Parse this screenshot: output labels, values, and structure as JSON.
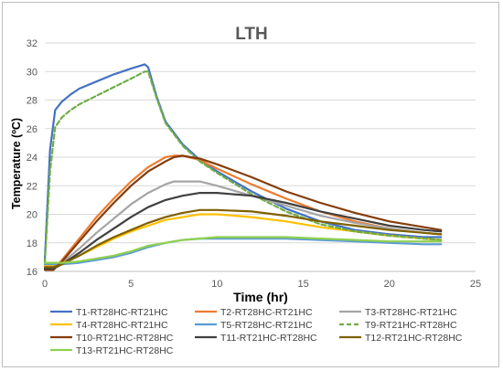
{
  "chart_data": {
    "type": "line",
    "title": "LTH",
    "xlabel": "Time (hr)",
    "ylabel": "Temperature (ºC)",
    "xlim": [
      0,
      25
    ],
    "ylim": [
      16,
      32
    ],
    "x_ticks": [
      "0",
      "5",
      "10",
      "15",
      "20",
      "25"
    ],
    "y_ticks": [
      "16",
      "18",
      "20",
      "22",
      "24",
      "26",
      "28",
      "30",
      "32"
    ],
    "grid": "horizontal",
    "legend_position": "bottom",
    "series": [
      {
        "name": "T1-RT28HC-RT21HC",
        "color": "#4472c4",
        "dash": "solid",
        "x": [
          0,
          0.3,
          0.6,
          1,
          1.5,
          2,
          3,
          4,
          5,
          5.8,
          6,
          6.5,
          7,
          8,
          9,
          10,
          12,
          14,
          16,
          18,
          20,
          22,
          23
        ],
        "y": [
          16.8,
          24.5,
          27.3,
          27.9,
          28.4,
          28.8,
          29.3,
          29.8,
          30.2,
          30.5,
          30.3,
          28.2,
          26.5,
          24.9,
          23.8,
          23.0,
          21.6,
          20.4,
          19.5,
          18.9,
          18.6,
          18.4,
          18.4
        ]
      },
      {
        "name": "T2-RT28HC-RT21HC",
        "color": "#ed7d31",
        "dash": "solid",
        "x": [
          0,
          0.5,
          1,
          2,
          3,
          4,
          5,
          6,
          7,
          7.5,
          8,
          9,
          10,
          12,
          14,
          16,
          18,
          20,
          22,
          23
        ],
        "y": [
          16.2,
          16.2,
          16.8,
          18.3,
          19.8,
          21.1,
          22.3,
          23.3,
          24.0,
          24.1,
          24.1,
          23.8,
          23.2,
          22.1,
          21.1,
          20.2,
          19.5,
          19.0,
          18.7,
          18.6
        ]
      },
      {
        "name": "T3-RT28HC-RT21HC",
        "color": "#a5a5a5",
        "dash": "solid",
        "x": [
          0,
          0.5,
          1,
          2,
          3,
          4,
          5,
          6,
          7,
          7.5,
          8,
          9,
          10,
          12,
          14,
          16,
          18,
          20,
          22,
          23
        ],
        "y": [
          16.2,
          16.2,
          16.6,
          17.6,
          18.7,
          19.7,
          20.7,
          21.5,
          22.1,
          22.3,
          22.3,
          22.3,
          22.0,
          21.3,
          20.6,
          19.9,
          19.4,
          19.0,
          18.7,
          18.6
        ]
      },
      {
        "name": "T4-RT28HC-RT21HC",
        "color": "#ffc000",
        "dash": "solid",
        "x": [
          0,
          0.5,
          1,
          2,
          3,
          4,
          5,
          6,
          7,
          8,
          9,
          10,
          12,
          14,
          16,
          18,
          20,
          22,
          23
        ],
        "y": [
          16.4,
          16.4,
          16.6,
          17.1,
          17.7,
          18.3,
          18.8,
          19.2,
          19.6,
          19.8,
          20.0,
          20.0,
          19.8,
          19.5,
          19.1,
          18.8,
          18.5,
          18.3,
          18.2
        ]
      },
      {
        "name": "T5-RT28HC-RT21HC",
        "color": "#5b9bd5",
        "dash": "solid",
        "x": [
          0,
          1,
          2,
          3,
          4,
          5,
          6,
          7,
          8,
          9,
          10,
          12,
          14,
          16,
          18,
          20,
          22,
          23
        ],
        "y": [
          16.5,
          16.5,
          16.6,
          16.8,
          17.0,
          17.3,
          17.7,
          18.0,
          18.2,
          18.3,
          18.3,
          18.3,
          18.3,
          18.2,
          18.1,
          18.0,
          17.9,
          17.9
        ]
      },
      {
        "name": "T9-RT21HC-RT28HC",
        "color": "#70ad47",
        "dash": "dashed",
        "x": [
          0,
          0.3,
          0.6,
          1,
          1.5,
          2,
          3,
          4,
          5,
          5.8,
          6,
          6.5,
          7,
          8,
          9,
          10,
          12,
          14,
          16,
          18,
          20,
          22,
          23
        ],
        "y": [
          16.6,
          23.0,
          26.1,
          26.8,
          27.3,
          27.7,
          28.3,
          28.9,
          29.5,
          30.0,
          30.0,
          28.1,
          26.4,
          24.8,
          23.7,
          22.9,
          21.4,
          20.2,
          19.3,
          18.8,
          18.5,
          18.3,
          18.2
        ]
      },
      {
        "name": "T10-RT21HC-RT28HC",
        "color": "#843c0c",
        "dash": "solid",
        "x": [
          0,
          0.5,
          1,
          2,
          3,
          4,
          5,
          6,
          7,
          7.5,
          8,
          9,
          10,
          12,
          14,
          16,
          18,
          20,
          22,
          23
        ],
        "y": [
          16.1,
          16.1,
          16.7,
          18.1,
          19.5,
          20.8,
          22.0,
          23.0,
          23.7,
          24.0,
          24.1,
          23.9,
          23.5,
          22.6,
          21.6,
          20.8,
          20.1,
          19.5,
          19.1,
          18.9
        ]
      },
      {
        "name": "T11-RT21HC-RT28HC",
        "color": "#404040",
        "dash": "solid",
        "x": [
          0,
          0.5,
          1,
          2,
          3,
          4,
          5,
          6,
          7,
          8,
          9,
          10,
          12,
          14,
          16,
          18,
          20,
          22,
          23
        ],
        "y": [
          16.2,
          16.2,
          16.5,
          17.3,
          18.2,
          19.0,
          19.8,
          20.5,
          21.0,
          21.3,
          21.5,
          21.5,
          21.3,
          20.8,
          20.2,
          19.7,
          19.2,
          18.9,
          18.8
        ]
      },
      {
        "name": "T12-RT21HC-RT28HC",
        "color": "#7f6000",
        "dash": "solid",
        "x": [
          0,
          0.5,
          1,
          2,
          3,
          4,
          5,
          6,
          7,
          8,
          9,
          10,
          12,
          14,
          16,
          18,
          20,
          22,
          23
        ],
        "y": [
          16.3,
          16.3,
          16.5,
          17.1,
          17.8,
          18.4,
          18.9,
          19.4,
          19.8,
          20.1,
          20.3,
          20.3,
          20.2,
          19.9,
          19.5,
          19.2,
          18.9,
          18.7,
          18.6
        ]
      },
      {
        "name": "T13-RT21HC-RT28HC",
        "color": "#8fd14f",
        "dash": "solid",
        "x": [
          0,
          1,
          2,
          3,
          4,
          5,
          6,
          7,
          8,
          9,
          10,
          12,
          14,
          16,
          18,
          20,
          22,
          23
        ],
        "y": [
          16.6,
          16.6,
          16.7,
          16.9,
          17.1,
          17.4,
          17.8,
          18.0,
          18.2,
          18.3,
          18.4,
          18.4,
          18.4,
          18.3,
          18.2,
          18.1,
          18.1,
          18.1
        ]
      }
    ]
  }
}
